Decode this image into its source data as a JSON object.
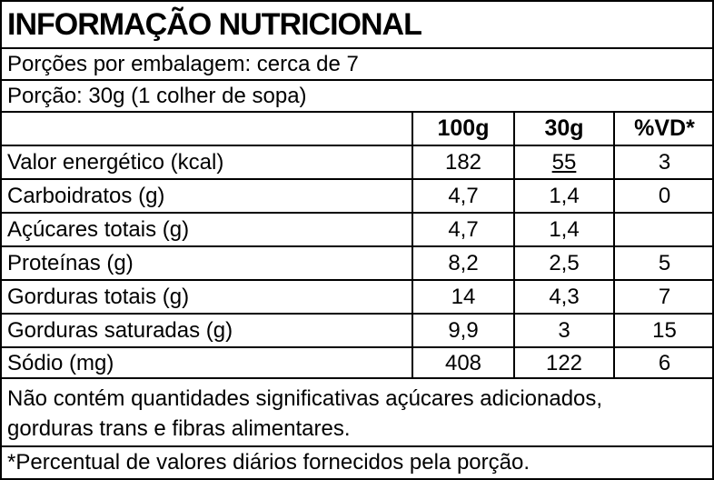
{
  "title": "INFORMAÇÃO NUTRICIONAL",
  "servings_per_package": "Porções por embalagem: cerca de 7",
  "serving_size": "Porção: 30g (1 colher de sopa)",
  "columns": [
    "100g",
    "30g",
    "%VD*"
  ],
  "rows": [
    {
      "label": "Valor energético (kcal)",
      "per100": "182",
      "perServing": "55",
      "vd": "3"
    },
    {
      "label": "Carboidratos (g)",
      "per100": "4,7",
      "perServing": "1,4",
      "vd": "0"
    },
    {
      "label": "Açúcares totais (g)",
      "per100": "4,7",
      "perServing": "1,4",
      "vd": ""
    },
    {
      "label": "Proteínas (g)",
      "per100": "8,2",
      "perServing": "2,5",
      "vd": "5"
    },
    {
      "label": "Gorduras totais (g)",
      "per100": "14",
      "perServing": "4,3",
      "vd": "7"
    },
    {
      "label": "Gorduras saturadas (g)",
      "per100": "9,9",
      "perServing": "3",
      "vd": "15"
    },
    {
      "label": "Sódio (mg)",
      "per100": "408",
      "perServing": "122",
      "vd": "6"
    }
  ],
  "footnote_line1": "Não contém quantidades significativas açúcares adicionados,",
  "footnote_line2": "gorduras trans e fibras alimentares.",
  "vd_note": "*Percentual de valores diários fornecidos pela porção."
}
